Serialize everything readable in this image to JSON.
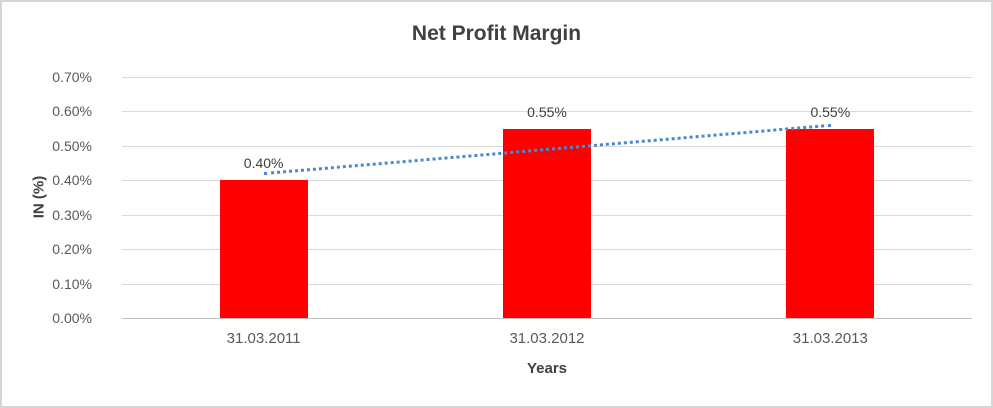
{
  "chart_data": {
    "type": "bar",
    "title": "Net Profit Margin",
    "xlabel": "Years",
    "ylabel": "IN (%)",
    "categories": [
      "31.03.2011",
      "31.03.2012",
      "31.03.2013"
    ],
    "values": [
      0.4,
      0.55,
      0.55
    ],
    "data_labels": [
      "0.40%",
      "0.55%",
      "0.55%"
    ],
    "yticks": [
      {
        "value": 0.7,
        "label": "0.70%"
      },
      {
        "value": 0.6,
        "label": "0.60%"
      },
      {
        "value": 0.5,
        "label": "0.50%"
      },
      {
        "value": 0.4,
        "label": "0.40%"
      },
      {
        "value": 0.3,
        "label": "0.30%"
      },
      {
        "value": 0.2,
        "label": "0.20%"
      },
      {
        "value": 0.1,
        "label": "0.10%"
      },
      {
        "value": 0.0,
        "label": "0.00%"
      }
    ],
    "ylim": [
      0,
      0.7
    ],
    "grid": true,
    "legend": "none",
    "bar_color": "#ff0000",
    "trendline": {
      "style": "dotted",
      "color": "#4a89d0",
      "start_value": 0.42,
      "end_value": 0.56
    }
  },
  "colors": {
    "title_text": "#404040",
    "tick_text": "#595959",
    "axis_title_text": "#404040",
    "data_label_text": "#404040",
    "gridline": "#d9d9d9",
    "axis_line": "#bfbfbf",
    "frame_border": "#d6d6d6",
    "background": "#ffffff"
  }
}
